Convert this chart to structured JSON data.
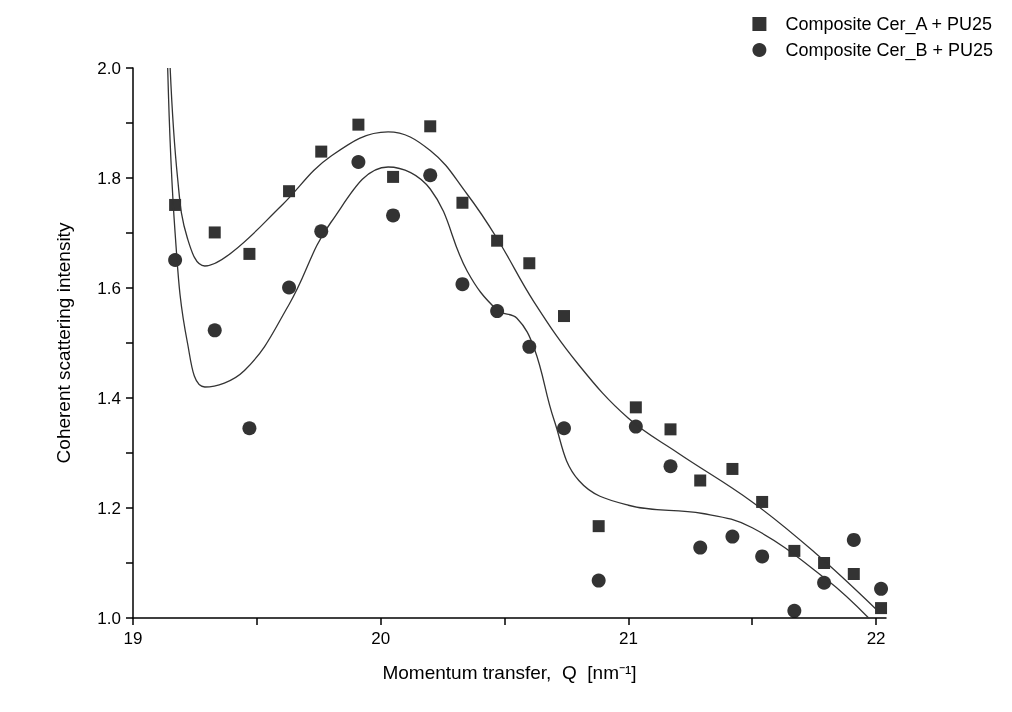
{
  "chart_data": {
    "type": "scatter",
    "xlabel": "Momentum transfer,  Q  [nm⁻¹]",
    "ylabel": "Coherent scattering intensity",
    "xlim": [
      19,
      22.04
    ],
    "ylim": [
      1.0,
      2.0
    ],
    "xticks": [
      19,
      {
        "value": 19.5,
        "label": null
      },
      20,
      {
        "value": 20.5,
        "label": null
      },
      21,
      {
        "value": 21.5,
        "label": null
      },
      22
    ],
    "yticks": [
      {
        "value": 1,
        "label": "1.0"
      },
      {
        "value": 1.1,
        "label": null
      },
      {
        "value": 1.2,
        "label": "1.2"
      },
      {
        "value": 1.3,
        "label": null
      },
      {
        "value": 1.4,
        "label": "1.4"
      },
      {
        "value": 1.5,
        "label": null
      },
      {
        "value": 1.6,
        "label": "1.6"
      },
      {
        "value": 1.7,
        "label": null
      },
      {
        "value": 1.8,
        "label": "1.8"
      },
      {
        "value": 1.9,
        "label": null
      },
      {
        "value": 2,
        "label": "2.0"
      }
    ],
    "grid": false,
    "legend": "top right",
    "x": [
      19.17,
      19.33,
      19.47,
      19.63,
      19.76,
      19.91,
      20.05,
      20.2,
      20.33,
      20.47,
      20.6,
      20.74,
      20.88,
      21.03,
      21.17,
      21.29,
      21.42,
      21.54,
      21.67,
      21.79,
      21.91,
      22.02
    ],
    "series": [
      {
        "name": "Composite Cer_A + PU25",
        "color": "#000000",
        "marker": "square",
        "values": [
          1.751,
          1.701,
          1.662,
          1.776,
          1.848,
          1.897,
          1.802,
          1.894,
          1.755,
          1.686,
          1.645,
          1.549,
          1.167,
          1.383,
          1.343,
          1.25,
          1.271,
          1.211,
          1.122,
          1.1,
          1.08,
          1.018
        ]
      },
      {
        "name": "Composite Cer_B + PU25",
        "color": "#000000",
        "marker": "circle",
        "values": [
          1.651,
          1.523,
          1.345,
          1.601,
          1.703,
          1.829,
          1.732,
          1.805,
          1.607,
          1.558,
          1.493,
          1.345,
          1.068,
          1.348,
          1.276,
          1.128,
          1.148,
          1.112,
          1.013,
          1.064,
          1.142,
          1.053
        ]
      },
      {
        "type": "line",
        "color": "#333333",
        "marker": "none",
        "x": [
          19.15,
          19.18,
          19.22,
          19.29,
          19.4,
          19.6,
          19.8,
          20.03,
          20.2,
          20.35,
          20.47,
          20.62,
          20.8,
          21.0,
          21.2,
          21.5,
          21.75,
          22.0
        ],
        "values": [
          2.0,
          1.8,
          1.69,
          1.64,
          1.665,
          1.75,
          1.84,
          1.884,
          1.85,
          1.77,
          1.69,
          1.574,
          1.46,
          1.363,
          1.3,
          1.211,
          1.12,
          1.016
        ]
      },
      {
        "type": "line",
        "color": "#333333",
        "marker": "none",
        "x": [
          19.14,
          19.17,
          19.22,
          19.29,
          19.45,
          19.63,
          19.8,
          20.03,
          20.2,
          20.35,
          20.47,
          20.55,
          20.62,
          20.7,
          20.8,
          21.0,
          21.3,
          21.5,
          21.8,
          21.97
        ],
        "values": [
          2.0,
          1.7,
          1.5,
          1.42,
          1.45,
          1.57,
          1.72,
          1.82,
          1.78,
          1.63,
          1.56,
          1.545,
          1.49,
          1.36,
          1.25,
          1.205,
          1.19,
          1.164,
          1.07,
          1.0
        ]
      }
    ]
  }
}
